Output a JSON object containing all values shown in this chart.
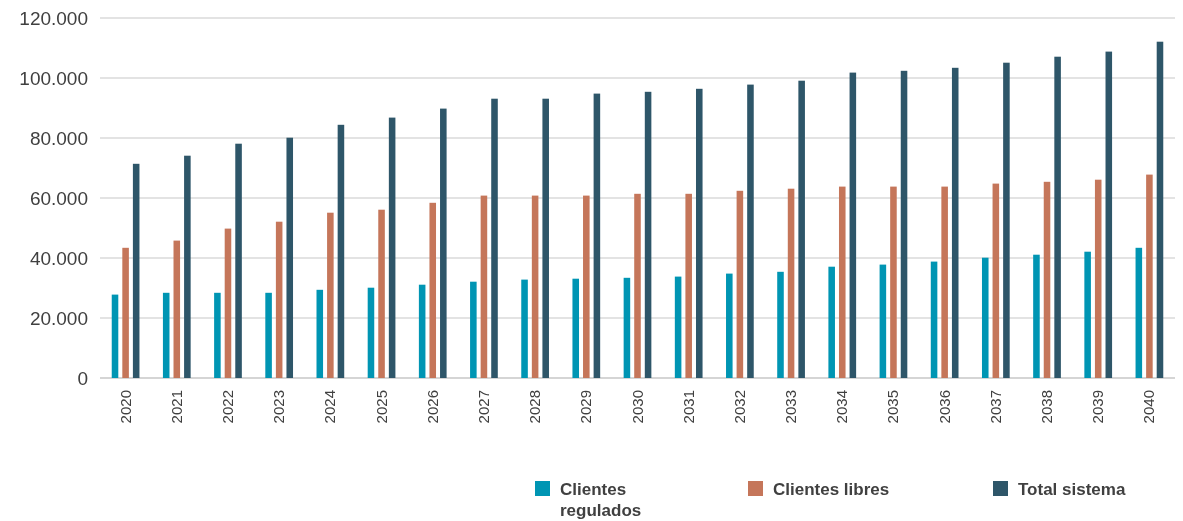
{
  "chart_data": {
    "type": "bar",
    "categories": [
      "2020",
      "2021",
      "2022",
      "2023",
      "2024",
      "2025",
      "2026",
      "2027",
      "2028",
      "2029",
      "2030",
      "2031",
      "2032",
      "2033",
      "2034",
      "2035",
      "2036",
      "2037",
      "2038",
      "2039",
      "2040"
    ],
    "series": [
      {
        "name": "Clientes regulados",
        "color": "#0095b3",
        "values": [
          27800,
          28400,
          28400,
          28400,
          29400,
          30100,
          31100,
          32100,
          32800,
          33100,
          33400,
          33800,
          34800,
          35400,
          37100,
          37800,
          38800,
          40100,
          41100,
          42100,
          43400
        ]
      },
      {
        "name": "Clientes libres",
        "color": "#c5765a",
        "values": [
          43400,
          45800,
          49800,
          52100,
          55100,
          56100,
          58400,
          60800,
          60800,
          60800,
          61400,
          61400,
          62400,
          63100,
          63800,
          63800,
          63800,
          64800,
          65400,
          66100,
          67800
        ]
      },
      {
        "name": "Total sistema",
        "color": "#2e5669",
        "values": [
          71400,
          74100,
          78100,
          80100,
          84400,
          86800,
          89800,
          93100,
          93100,
          94800,
          95400,
          96400,
          97800,
          99100,
          101800,
          102400,
          103400,
          105100,
          107100,
          108800,
          112100
        ]
      }
    ],
    "ylim": [
      0,
      120000
    ],
    "yticks": [
      {
        "value": 0,
        "label": "0"
      },
      {
        "value": 20000,
        "label": "20.000"
      },
      {
        "value": 40000,
        "label": "40.000"
      },
      {
        "value": 60000,
        "label": "60.000"
      },
      {
        "value": 80000,
        "label": "80.000"
      },
      {
        "value": 100000,
        "label": "100.000"
      },
      {
        "value": 120000,
        "label": "120.000"
      }
    ],
    "grid": "y",
    "legend": "bottom"
  }
}
